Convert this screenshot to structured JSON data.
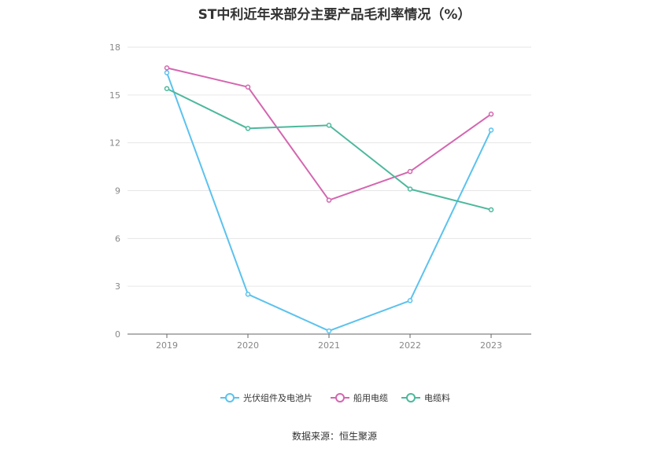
{
  "title": "ST中利近年来部分主要产品毛利率情况（%）",
  "source": "数据来源：恒生聚源",
  "chart_data": {
    "type": "line",
    "title": "ST中利近年来部分主要产品毛利率情况（%）",
    "xlabel": "",
    "ylabel": "",
    "categories": [
      "2019",
      "2020",
      "2021",
      "2022",
      "2023"
    ],
    "yticks": [
      "0",
      "3",
      "6",
      "9",
      "12",
      "15",
      "18"
    ],
    "ylim": [
      0,
      18
    ],
    "grid": true,
    "legend_position": "bottom",
    "series": [
      {
        "name": "光伏组件及电池片",
        "color": "#5bc2ee",
        "values": [
          16.4,
          2.5,
          0.2,
          2.1,
          12.8
        ]
      },
      {
        "name": "船用电缆",
        "color": "#d466b0",
        "values": [
          16.7,
          15.5,
          8.4,
          10.2,
          13.8
        ]
      },
      {
        "name": "电缆料",
        "color": "#4db89c",
        "values": [
          15.4,
          12.9,
          13.1,
          9.1,
          7.8
        ]
      }
    ]
  }
}
